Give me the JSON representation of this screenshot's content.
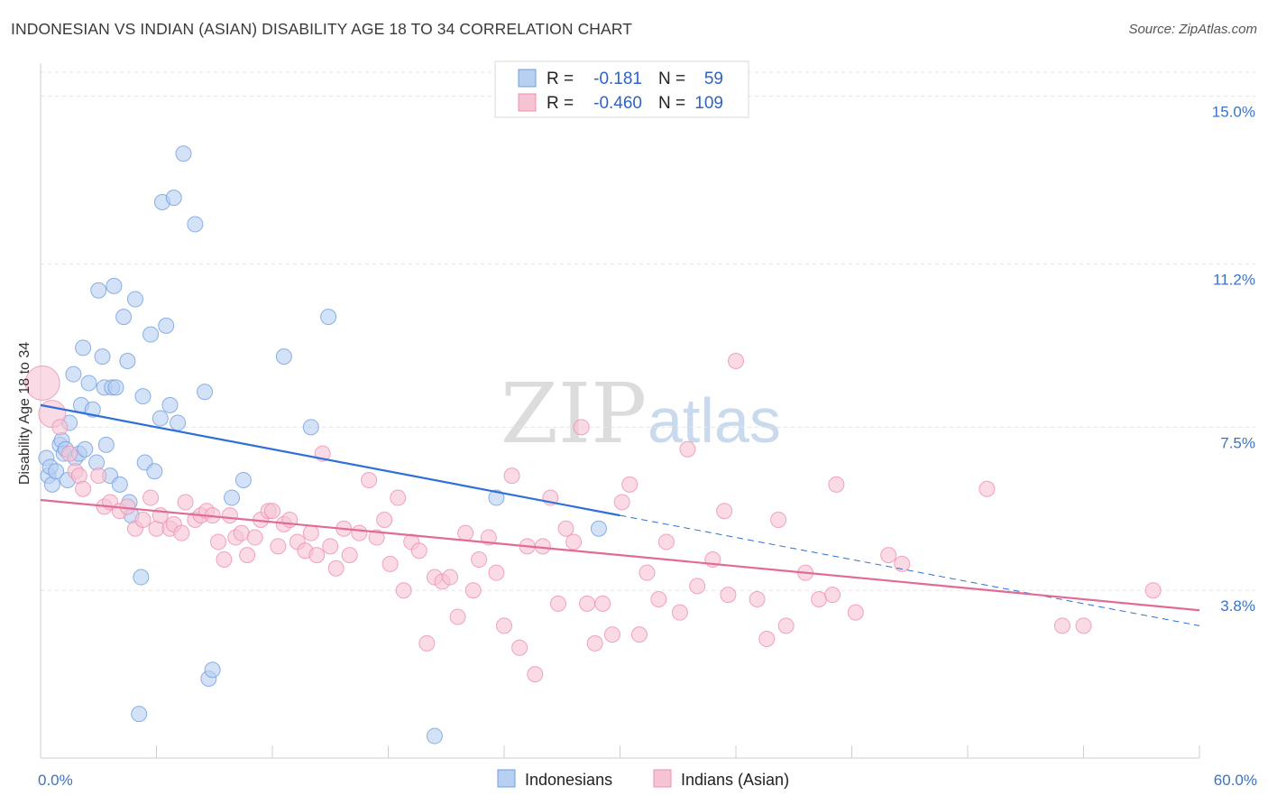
{
  "header": {
    "title": "INDONESIAN VS INDIAN (ASIAN) DISABILITY AGE 18 TO 34 CORRELATION CHART",
    "source": "Source: ZipAtlas.com"
  },
  "watermark": {
    "zip": "ZIP",
    "atlas": "atlas"
  },
  "legend": {
    "r_label": "R =",
    "n_label": "N =",
    "rows": [
      {
        "r": "-0.181",
        "n": "59",
        "color": "#6f9fe0"
      },
      {
        "r": "-0.460",
        "n": "109",
        "color": "#ee8fb0"
      }
    ]
  },
  "chart_data": {
    "type": "scatter",
    "xlabel": "",
    "ylabel": "Disability Age 18 to 34",
    "xlim": [
      0,
      60
    ],
    "ylim": [
      0,
      15.75
    ],
    "x_tick_labels": [
      "0.0%",
      "60.0%"
    ],
    "y_ticks": [
      3.8,
      7.5,
      11.2,
      15.0
    ],
    "y_tick_labels": [
      "3.8%",
      "7.5%",
      "11.2%",
      "15.0%"
    ],
    "grid": "horizontal dashed",
    "legend_position": "top-center",
    "series": [
      {
        "name": "Indonesians",
        "color": "#6f9fe0",
        "fill": "#b7cff1",
        "trend": {
          "x": [
            0,
            30
          ],
          "y": [
            8.0,
            5.5
          ],
          "dashed_x": [
            30,
            60
          ],
          "dashed_y": [
            5.5,
            3.0
          ]
        },
        "points": [
          [
            0.3,
            6.8
          ],
          [
            0.4,
            6.4
          ],
          [
            0.5,
            6.6
          ],
          [
            0.6,
            6.2
          ],
          [
            0.8,
            6.5
          ],
          [
            1.0,
            7.1
          ],
          [
            1.1,
            7.2
          ],
          [
            1.2,
            6.9
          ],
          [
            1.3,
            7.0
          ],
          [
            1.4,
            6.3
          ],
          [
            1.5,
            7.6
          ],
          [
            1.7,
            8.7
          ],
          [
            1.8,
            6.8
          ],
          [
            2.0,
            6.9
          ],
          [
            2.1,
            8.0
          ],
          [
            2.2,
            9.3
          ],
          [
            2.3,
            7.0
          ],
          [
            2.5,
            8.5
          ],
          [
            2.7,
            7.9
          ],
          [
            2.9,
            6.7
          ],
          [
            3.0,
            10.6
          ],
          [
            3.2,
            9.1
          ],
          [
            3.3,
            8.4
          ],
          [
            3.4,
            7.1
          ],
          [
            3.6,
            6.4
          ],
          [
            3.7,
            8.4
          ],
          [
            3.8,
            10.7
          ],
          [
            3.9,
            8.4
          ],
          [
            4.1,
            6.2
          ],
          [
            4.3,
            10.0
          ],
          [
            4.5,
            9.0
          ],
          [
            4.6,
            5.8
          ],
          [
            4.7,
            5.5
          ],
          [
            4.9,
            10.4
          ],
          [
            5.1,
            1.0
          ],
          [
            5.2,
            4.1
          ],
          [
            5.3,
            8.2
          ],
          [
            5.4,
            6.7
          ],
          [
            5.7,
            9.6
          ],
          [
            5.9,
            6.5
          ],
          [
            6.2,
            7.7
          ],
          [
            6.3,
            12.6
          ],
          [
            6.5,
            9.8
          ],
          [
            6.7,
            8.0
          ],
          [
            6.9,
            12.7
          ],
          [
            7.1,
            7.6
          ],
          [
            7.4,
            13.7
          ],
          [
            8.0,
            12.1
          ],
          [
            8.5,
            8.3
          ],
          [
            8.7,
            1.8
          ],
          [
            8.9,
            2.0
          ],
          [
            9.9,
            5.9
          ],
          [
            10.5,
            6.3
          ],
          [
            12.6,
            9.1
          ],
          [
            14.0,
            7.5
          ],
          [
            14.9,
            10.0
          ],
          [
            20.4,
            0.5
          ],
          [
            23.6,
            5.9
          ],
          [
            28.9,
            5.2
          ]
        ]
      },
      {
        "name": "Indians (Asian)",
        "color": "#ee8fb0",
        "fill": "#f6c3d3",
        "trend": {
          "x": [
            0,
            60
          ],
          "y": [
            5.85,
            3.35
          ]
        },
        "points": [
          [
            0.1,
            8.5
          ],
          [
            0.6,
            7.8
          ],
          [
            1.0,
            7.5
          ],
          [
            1.5,
            6.9
          ],
          [
            1.8,
            6.5
          ],
          [
            2.0,
            6.4
          ],
          [
            2.2,
            6.1
          ],
          [
            3.0,
            6.4
          ],
          [
            3.3,
            5.7
          ],
          [
            3.6,
            5.8
          ],
          [
            4.1,
            5.6
          ],
          [
            4.5,
            5.7
          ],
          [
            4.9,
            5.2
          ],
          [
            5.3,
            5.4
          ],
          [
            5.7,
            5.9
          ],
          [
            6.0,
            5.2
          ],
          [
            6.2,
            5.5
          ],
          [
            6.7,
            5.2
          ],
          [
            6.9,
            5.3
          ],
          [
            7.3,
            5.1
          ],
          [
            7.5,
            5.8
          ],
          [
            8.0,
            5.4
          ],
          [
            8.3,
            5.5
          ],
          [
            8.6,
            5.6
          ],
          [
            8.9,
            5.5
          ],
          [
            9.2,
            4.9
          ],
          [
            9.5,
            4.5
          ],
          [
            9.8,
            5.5
          ],
          [
            10.1,
            5.0
          ],
          [
            10.4,
            5.1
          ],
          [
            10.7,
            4.6
          ],
          [
            11.1,
            5.0
          ],
          [
            11.4,
            5.4
          ],
          [
            11.8,
            5.6
          ],
          [
            12.0,
            5.6
          ],
          [
            12.3,
            4.8
          ],
          [
            12.6,
            5.3
          ],
          [
            12.9,
            5.4
          ],
          [
            13.3,
            4.9
          ],
          [
            13.7,
            4.7
          ],
          [
            14.0,
            5.1
          ],
          [
            14.3,
            4.6
          ],
          [
            14.6,
            6.9
          ],
          [
            15.0,
            4.8
          ],
          [
            15.3,
            4.3
          ],
          [
            15.7,
            5.2
          ],
          [
            16.0,
            4.6
          ],
          [
            16.5,
            5.1
          ],
          [
            17.0,
            6.3
          ],
          [
            17.4,
            5.0
          ],
          [
            17.8,
            5.4
          ],
          [
            18.1,
            4.4
          ],
          [
            18.5,
            5.9
          ],
          [
            18.8,
            3.8
          ],
          [
            19.2,
            4.9
          ],
          [
            19.6,
            4.7
          ],
          [
            20.0,
            2.6
          ],
          [
            20.4,
            4.1
          ],
          [
            20.8,
            4.0
          ],
          [
            21.2,
            4.1
          ],
          [
            21.6,
            3.2
          ],
          [
            22.0,
            5.1
          ],
          [
            22.4,
            3.8
          ],
          [
            22.7,
            4.5
          ],
          [
            23.2,
            5.0
          ],
          [
            23.6,
            4.2
          ],
          [
            24.0,
            3.0
          ],
          [
            24.4,
            6.4
          ],
          [
            24.8,
            2.5
          ],
          [
            25.2,
            4.8
          ],
          [
            25.6,
            1.9
          ],
          [
            26.0,
            4.8
          ],
          [
            26.4,
            5.9
          ],
          [
            26.8,
            3.5
          ],
          [
            27.2,
            5.2
          ],
          [
            27.6,
            4.9
          ],
          [
            28.0,
            7.5
          ],
          [
            28.3,
            3.5
          ],
          [
            28.7,
            2.6
          ],
          [
            29.1,
            3.5
          ],
          [
            29.6,
            2.8
          ],
          [
            30.1,
            5.8
          ],
          [
            30.5,
            6.2
          ],
          [
            31.0,
            2.8
          ],
          [
            31.4,
            4.2
          ],
          [
            32.0,
            3.6
          ],
          [
            32.4,
            4.9
          ],
          [
            33.1,
            3.3
          ],
          [
            33.5,
            7.0
          ],
          [
            34.0,
            3.9
          ],
          [
            35.4,
            5.6
          ],
          [
            34.8,
            4.5
          ],
          [
            35.6,
            3.7
          ],
          [
            36.0,
            9.0
          ],
          [
            37.1,
            3.6
          ],
          [
            37.6,
            2.7
          ],
          [
            38.2,
            5.4
          ],
          [
            38.6,
            3.0
          ],
          [
            39.6,
            4.2
          ],
          [
            40.3,
            3.6
          ],
          [
            41.0,
            3.7
          ],
          [
            41.2,
            6.2
          ],
          [
            42.2,
            3.3
          ],
          [
            43.9,
            4.6
          ],
          [
            44.6,
            4.4
          ],
          [
            49.0,
            6.1
          ],
          [
            52.9,
            3.0
          ],
          [
            54.0,
            3.0
          ],
          [
            57.6,
            3.8
          ]
        ]
      }
    ]
  }
}
